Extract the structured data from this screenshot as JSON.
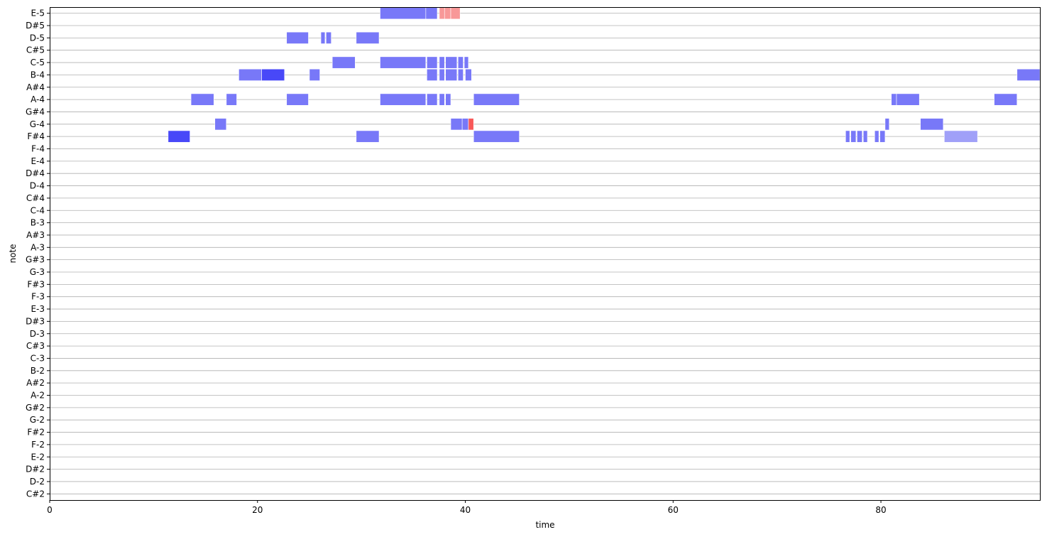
{
  "chart_data": {
    "type": "piano-roll",
    "xlabel": "time",
    "ylabel": "note",
    "xlim": [
      0,
      95.3
    ],
    "x_ticks": [
      0,
      20,
      40,
      60,
      80
    ],
    "notes": [
      "C#2",
      "D-2",
      "D#2",
      "E-2",
      "F-2",
      "F#2",
      "G-2",
      "G#2",
      "A-2",
      "A#2",
      "B-2",
      "C-3",
      "C#3",
      "D-3",
      "D#3",
      "E-3",
      "F-3",
      "F#3",
      "G-3",
      "G#3",
      "A-3",
      "A#3",
      "B-3",
      "C-4",
      "C#4",
      "D-4",
      "D#4",
      "E-4",
      "F-4",
      "F#4",
      "G-4",
      "G#4",
      "A-4",
      "A#4",
      "B-4",
      "C-5",
      "C#5",
      "D-5",
      "D#5",
      "E-5"
    ],
    "grid": true,
    "colors": {
      "blue_strong": "#4848f8",
      "blue": "#7878f8",
      "blue_light": "#a0a0f8",
      "red_strong": "#f85858",
      "red": "#f87878",
      "red_light": "#f89898",
      "gridline": "#b0b0b0"
    },
    "events": [
      {
        "note": "E-5",
        "start": 31.8,
        "end": 36.2,
        "color": "blue"
      },
      {
        "note": "E-5",
        "start": 36.2,
        "end": 37.3,
        "color": "blue"
      },
      {
        "note": "E-5",
        "start": 37.5,
        "end": 38.0,
        "color": "red_light"
      },
      {
        "note": "E-5",
        "start": 38.0,
        "end": 38.6,
        "color": "red_light"
      },
      {
        "note": "E-5",
        "start": 38.6,
        "end": 39.5,
        "color": "red_light"
      },
      {
        "note": "D-5",
        "start": 22.8,
        "end": 24.9,
        "color": "blue"
      },
      {
        "note": "D-5",
        "start": 26.1,
        "end": 26.5,
        "color": "blue"
      },
      {
        "note": "D-5",
        "start": 26.6,
        "end": 27.1,
        "color": "blue"
      },
      {
        "note": "D-5",
        "start": 29.5,
        "end": 31.7,
        "color": "blue"
      },
      {
        "note": "C-5",
        "start": 27.2,
        "end": 29.4,
        "color": "blue"
      },
      {
        "note": "C-5",
        "start": 31.8,
        "end": 36.2,
        "color": "blue"
      },
      {
        "note": "C-5",
        "start": 36.3,
        "end": 37.3,
        "color": "blue"
      },
      {
        "note": "C-5",
        "start": 37.5,
        "end": 38.0,
        "color": "blue"
      },
      {
        "note": "C-5",
        "start": 38.1,
        "end": 39.2,
        "color": "blue"
      },
      {
        "note": "C-5",
        "start": 39.3,
        "end": 39.8,
        "color": "blue"
      },
      {
        "note": "C-5",
        "start": 39.9,
        "end": 40.3,
        "color": "blue"
      },
      {
        "note": "B-4",
        "start": 18.2,
        "end": 20.4,
        "color": "blue"
      },
      {
        "note": "B-4",
        "start": 20.4,
        "end": 22.6,
        "color": "blue_strong"
      },
      {
        "note": "B-4",
        "start": 25.0,
        "end": 26.0,
        "color": "blue"
      },
      {
        "note": "B-4",
        "start": 36.3,
        "end": 37.3,
        "color": "blue"
      },
      {
        "note": "B-4",
        "start": 37.5,
        "end": 38.0,
        "color": "blue"
      },
      {
        "note": "B-4",
        "start": 38.1,
        "end": 39.2,
        "color": "blue"
      },
      {
        "note": "B-4",
        "start": 39.3,
        "end": 39.8,
        "color": "blue"
      },
      {
        "note": "B-4",
        "start": 40.0,
        "end": 40.6,
        "color": "blue"
      },
      {
        "note": "B-4",
        "start": 93.1,
        "end": 95.3,
        "color": "blue"
      },
      {
        "note": "A-4",
        "start": 13.6,
        "end": 15.8,
        "color": "blue"
      },
      {
        "note": "A-4",
        "start": 17.0,
        "end": 18.0,
        "color": "blue"
      },
      {
        "note": "A-4",
        "start": 22.8,
        "end": 24.9,
        "color": "blue"
      },
      {
        "note": "A-4",
        "start": 31.8,
        "end": 36.2,
        "color": "blue"
      },
      {
        "note": "A-4",
        "start": 36.3,
        "end": 37.3,
        "color": "blue"
      },
      {
        "note": "A-4",
        "start": 37.5,
        "end": 38.0,
        "color": "blue"
      },
      {
        "note": "A-4",
        "start": 38.1,
        "end": 38.6,
        "color": "blue"
      },
      {
        "note": "A-4",
        "start": 40.8,
        "end": 45.2,
        "color": "blue"
      },
      {
        "note": "A-4",
        "start": 81.0,
        "end": 81.5,
        "color": "blue"
      },
      {
        "note": "A-4",
        "start": 81.5,
        "end": 83.7,
        "color": "blue"
      },
      {
        "note": "A-4",
        "start": 90.9,
        "end": 93.1,
        "color": "blue"
      },
      {
        "note": "G-4",
        "start": 15.9,
        "end": 17.0,
        "color": "blue"
      },
      {
        "note": "G-4",
        "start": 38.6,
        "end": 39.7,
        "color": "blue"
      },
      {
        "note": "G-4",
        "start": 39.7,
        "end": 40.3,
        "color": "blue"
      },
      {
        "note": "G-4",
        "start": 40.3,
        "end": 40.8,
        "color": "red_strong"
      },
      {
        "note": "G-4",
        "start": 80.4,
        "end": 80.8,
        "color": "blue"
      },
      {
        "note": "G-4",
        "start": 83.8,
        "end": 86.0,
        "color": "blue"
      },
      {
        "note": "F#4",
        "start": 11.4,
        "end": 13.5,
        "color": "blue_strong"
      },
      {
        "note": "F#4",
        "start": 29.5,
        "end": 31.7,
        "color": "blue"
      },
      {
        "note": "F#4",
        "start": 40.8,
        "end": 45.2,
        "color": "blue"
      },
      {
        "note": "F#4",
        "start": 76.6,
        "end": 77.0,
        "color": "blue"
      },
      {
        "note": "F#4",
        "start": 77.1,
        "end": 77.6,
        "color": "blue"
      },
      {
        "note": "F#4",
        "start": 77.7,
        "end": 78.2,
        "color": "blue"
      },
      {
        "note": "F#4",
        "start": 78.3,
        "end": 78.7,
        "color": "blue"
      },
      {
        "note": "F#4",
        "start": 79.4,
        "end": 79.8,
        "color": "blue"
      },
      {
        "note": "F#4",
        "start": 79.9,
        "end": 80.4,
        "color": "blue"
      },
      {
        "note": "F#4",
        "start": 86.1,
        "end": 89.3,
        "color": "blue_light"
      }
    ]
  }
}
